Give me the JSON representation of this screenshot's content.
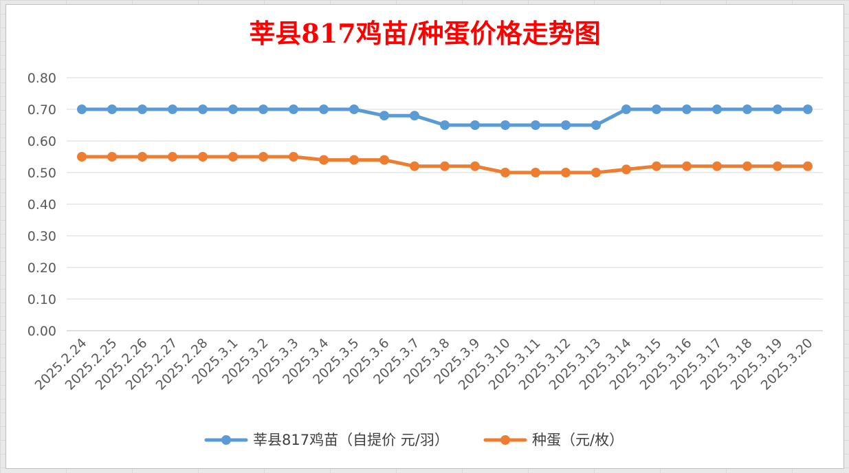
{
  "chart_data": {
    "type": "line",
    "title": "莘县817鸡苗/种蛋价格走势图",
    "categories": [
      "2025.2.24",
      "2025.2.25",
      "2025.2.26",
      "2025.2.27",
      "2025.2.28",
      "2025.3.1",
      "2025.3.2",
      "2025.3.3",
      "2025.3.4",
      "2025.3.5",
      "2025.3.6",
      "2025.3.7",
      "2025.3.8",
      "2025.3.9",
      "2025.3.10",
      "2025.3.11",
      "2025.3.12",
      "2025.3.13",
      "2025.3.14",
      "2025.3.15",
      "2025.3.16",
      "2025.3.17",
      "2025.3.18",
      "2025.3.19",
      "2025.3.20"
    ],
    "series": [
      {
        "name": "莘县817鸡苗（自提价 元/羽）",
        "color": "#5b9bd5",
        "values": [
          0.7,
          0.7,
          0.7,
          0.7,
          0.7,
          0.7,
          0.7,
          0.7,
          0.7,
          0.7,
          0.68,
          0.68,
          0.65,
          0.65,
          0.65,
          0.65,
          0.65,
          0.65,
          0.7,
          0.7,
          0.7,
          0.7,
          0.7,
          0.7,
          0.7
        ]
      },
      {
        "name": "种蛋（元/枚）",
        "color": "#ed7d31",
        "values": [
          0.55,
          0.55,
          0.55,
          0.55,
          0.55,
          0.55,
          0.55,
          0.55,
          0.54,
          0.54,
          0.54,
          0.52,
          0.52,
          0.52,
          0.5,
          0.5,
          0.5,
          0.5,
          0.51,
          0.52,
          0.52,
          0.52,
          0.52,
          0.52,
          0.52
        ]
      }
    ],
    "ylim": [
      0,
      0.8
    ],
    "yticks": [
      "0.00",
      "0.10",
      "0.20",
      "0.30",
      "0.40",
      "0.50",
      "0.60",
      "0.70",
      "0.80"
    ],
    "grid": true,
    "legend_position": "bottom"
  }
}
